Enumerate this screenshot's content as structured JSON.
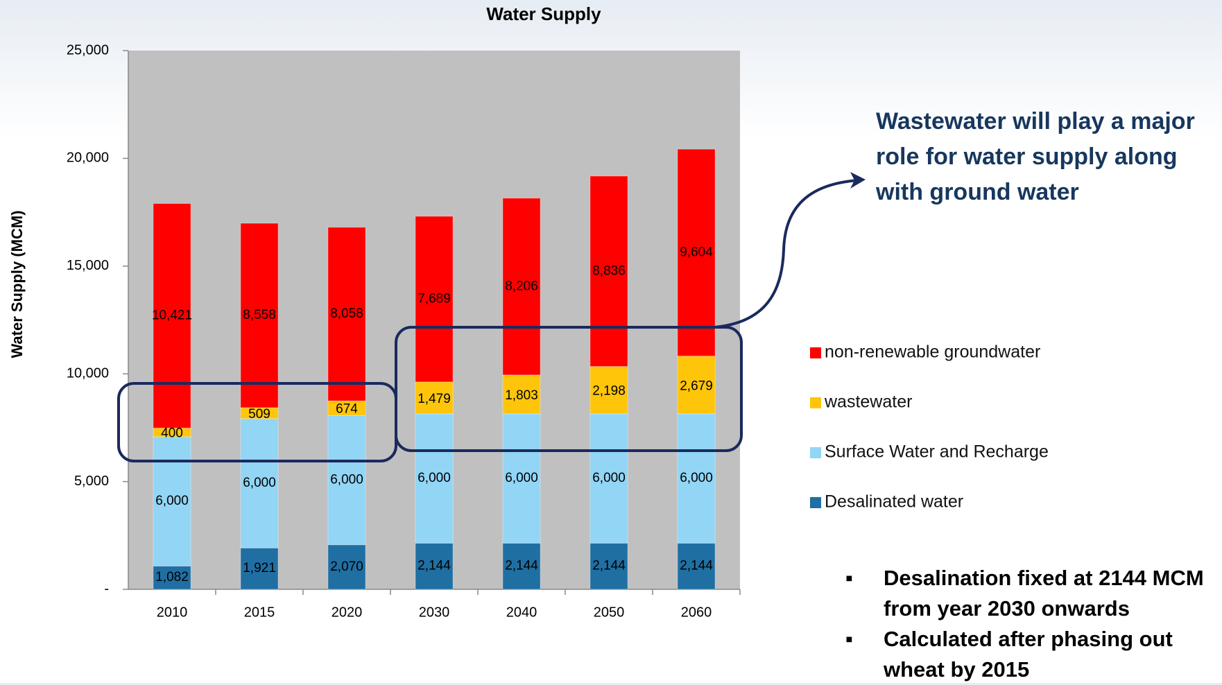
{
  "chart_data": {
    "type": "stacked_bar",
    "title": "Water Supply",
    "y_label": "Water Supply (MCM)",
    "categories": [
      "2010",
      "2015",
      "2020",
      "2030",
      "2040",
      "2050",
      "2060"
    ],
    "series": [
      {
        "name": "Desalinated water",
        "color": "#1f6fa3",
        "values": [
          1082,
          1921,
          2070,
          2144,
          2144,
          2144,
          2144
        ],
        "value_labels": [
          "1,082",
          "1,921",
          "2,070",
          "2,144",
          "2,144",
          "2,144",
          "2,144"
        ]
      },
      {
        "name": "Surface Water and Recharge",
        "color": "#92d5f5",
        "values": [
          6000,
          6000,
          6000,
          6000,
          6000,
          6000,
          6000
        ],
        "value_labels": [
          "6,000",
          "6,000",
          "6,000",
          "6,000",
          "6,000",
          "6,000",
          "6,000"
        ]
      },
      {
        "name": "wastewater",
        "color": "#ffc50a",
        "values": [
          400,
          509,
          674,
          1479,
          1803,
          2198,
          2679
        ],
        "value_labels": [
          "400",
          "509",
          "674",
          "1,479",
          "1,803",
          "2,198",
          "2,679"
        ]
      },
      {
        "name": "non-renewable groundwater",
        "color": "#ff0000",
        "values": [
          10421,
          8558,
          8058,
          7689,
          8206,
          8836,
          9604
        ],
        "value_labels": [
          "10,421",
          "8,558",
          "8,058",
          "7,689",
          "8,206",
          "8,836",
          "9,604"
        ]
      }
    ],
    "ylim": [
      0,
      25000
    ],
    "yticks": [
      {
        "value": 0,
        "label": "-"
      },
      {
        "value": 5000,
        "label": "5,000"
      },
      {
        "value": 10000,
        "label": "10,000"
      },
      {
        "value": 15000,
        "label": "15,000"
      },
      {
        "value": 20000,
        "label": "20,000"
      },
      {
        "value": 25000,
        "label": "25,000"
      }
    ],
    "annotation": "Wastewater will play a major role for water supply along with ground water",
    "bullets": [
      "Desalination fixed at 2144 MCM from year 2030 onwards",
      "Calculated after phasing out wheat by 2015"
    ]
  }
}
